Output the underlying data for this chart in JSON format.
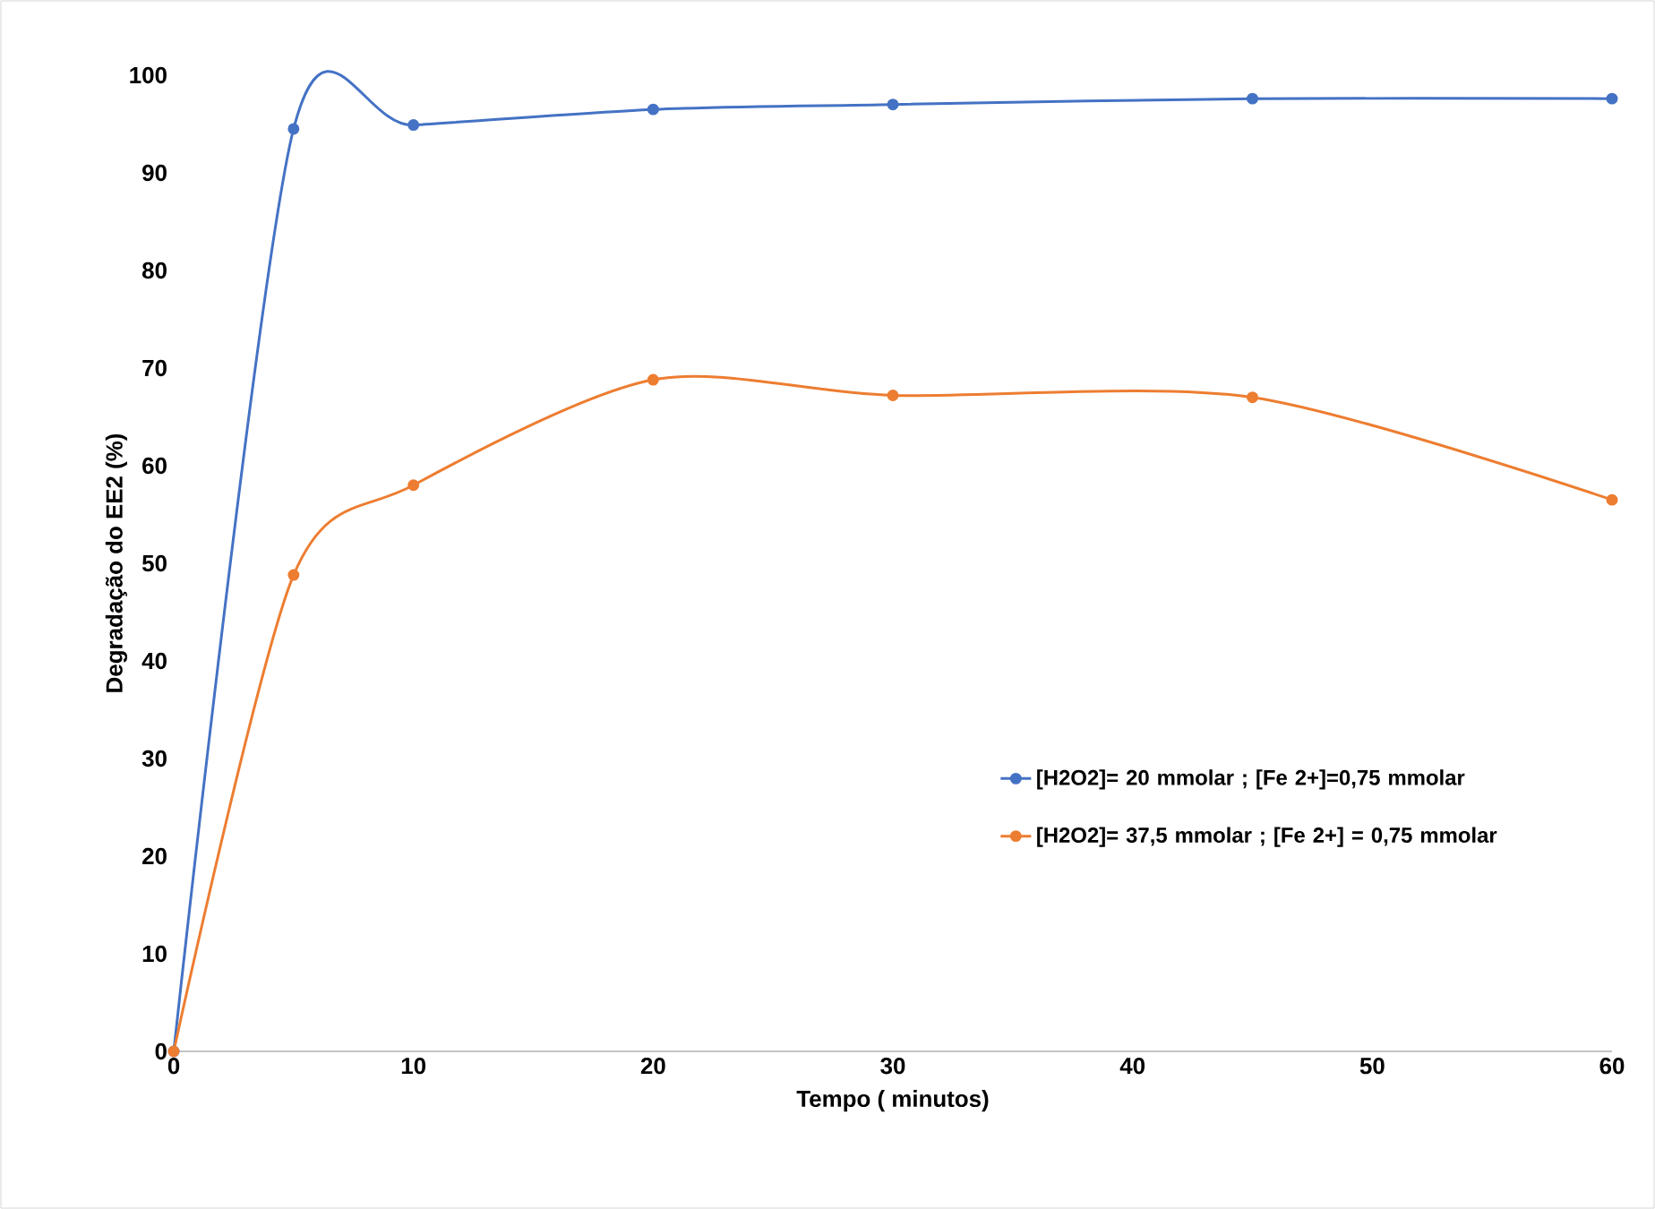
{
  "chart_data": {
    "type": "line",
    "xlabel": "Tempo ( minutos)",
    "ylabel": "Degradação do EE2 (%)",
    "x": [
      0,
      5,
      10,
      20,
      30,
      45,
      60
    ],
    "series": [
      {
        "name": "[H2O2]= 20 mmolar ; [Fe 2+]=0,75 mmolar",
        "color": "#4472c4",
        "values": [
          0,
          94.5,
          94.9,
          96.5,
          97,
          97.6,
          97.6
        ]
      },
      {
        "name": "[H2O2]= 37,5 mmolar ; [Fe 2+] = 0,75 mmolar",
        "color": "#ed7d31",
        "values": [
          0,
          48.8,
          58,
          68.8,
          67.2,
          67,
          56.5
        ]
      }
    ],
    "xlim": [
      0,
      60
    ],
    "xticks": [
      0,
      10,
      20,
      30,
      40,
      50,
      60
    ],
    "ylim": [
      0,
      100
    ],
    "yticks": [
      0,
      10,
      20,
      30,
      40,
      50,
      60,
      70,
      80,
      90,
      100
    ],
    "grid": false,
    "legend": "right",
    "marker": "circle",
    "line_style": "solid"
  }
}
